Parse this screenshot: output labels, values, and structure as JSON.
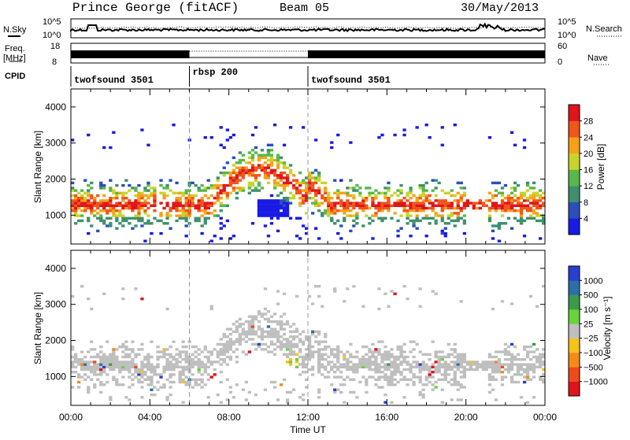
{
  "header": {
    "station": "Prince George (fitACF)",
    "beam": "Beam 05",
    "date": "30/May/2013"
  },
  "side_labels": {
    "nsky": "N.Sky",
    "freq_line1": "Freq.",
    "freq_line2": "[MHz]",
    "cpid": "CPID",
    "nsearch": "N.Search",
    "nave": "Nave"
  },
  "noise_panel": {
    "left_ticks": [
      "10^5",
      "10^0"
    ],
    "right_ticks": [
      "10^5",
      "10^0"
    ]
  },
  "freq_panel": {
    "left_ticks": [
      "18",
      "8"
    ],
    "right_ticks": [
      "60",
      "0"
    ]
  },
  "cpid_segments": [
    {
      "label": "twofsound 3501",
      "start_hour": 0,
      "end_hour": 6
    },
    {
      "label": "rbsp 200",
      "start_hour": 6,
      "end_hour": 12
    },
    {
      "label": "twofsound 3501",
      "start_hour": 12,
      "end_hour": 24
    }
  ],
  "chart_data": [
    {
      "type": "heatmap",
      "panel": "power",
      "ylabel": "Slant Range [km]",
      "ylim": [
        200,
        4500
      ],
      "y_ticks": [
        1000,
        2000,
        3000,
        4000
      ],
      "xlim": [
        0,
        24
      ],
      "colorbar_label": "Power [dB]",
      "colorbar_ticks": [
        "4",
        "8",
        "12",
        "16",
        "20",
        "24",
        "28"
      ],
      "colors": [
        "#1a1ae6",
        "#2a4fb8",
        "#3f8f6e",
        "#58b84a",
        "#c9d42a",
        "#f7a11a",
        "#f0551a",
        "#e0141a"
      ]
    },
    {
      "type": "heatmap",
      "panel": "velocity",
      "ylabel": "Slant Range [km]",
      "ylim": [
        200,
        4500
      ],
      "y_ticks": [
        1000,
        2000,
        3000,
        4000
      ],
      "xlim": [
        0,
        24
      ],
      "xlabel": "Time UT",
      "x_ticks": [
        "00:00",
        "04:00",
        "08:00",
        "12:00",
        "16:00",
        "20:00",
        "00:00"
      ],
      "colorbar_label": "Velocity [m s⁻¹]",
      "colorbar_ticks": [
        "1000",
        "500",
        "100",
        "25",
        "−25",
        "−100",
        "−500",
        "−1000"
      ],
      "colors": [
        "#2a3fd0",
        "#2a6fa8",
        "#3a9a4a",
        "#6ad23a",
        "#bfbfbf",
        "#f7c21a",
        "#f58a1a",
        "#ee4a1a",
        "#e0141a"
      ]
    }
  ],
  "colors": {
    "gridline": "#999999",
    "ground_scatter": "#bfbfbf"
  }
}
